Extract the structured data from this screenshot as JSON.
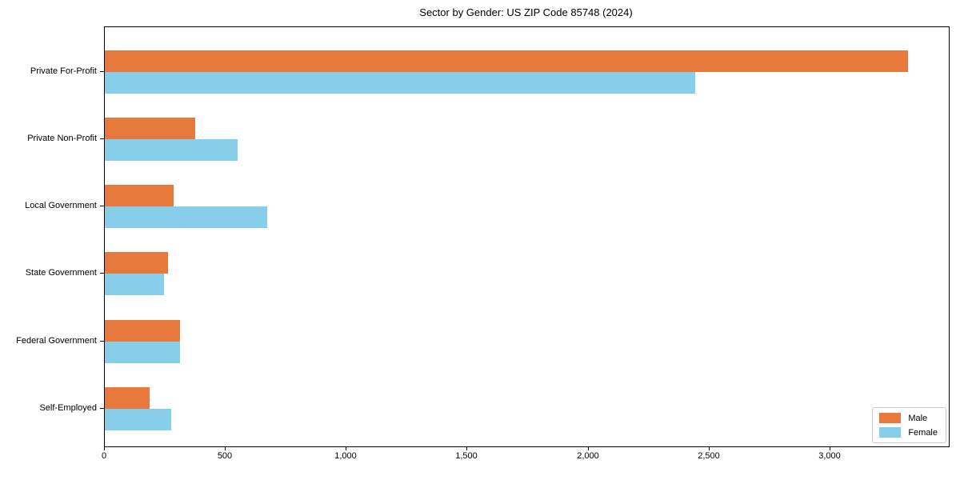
{
  "chart_data": {
    "type": "bar",
    "orientation": "horizontal",
    "title": "Sector by Gender: US ZIP Code 85748 (2024)",
    "categories": [
      "Private For-Profit",
      "Private Non-Profit",
      "Local Government",
      "State Government",
      "Federal Government",
      "Self-Employed"
    ],
    "series": [
      {
        "name": "Male",
        "color": "#e8793d",
        "values": [
          3320,
          375,
          285,
          260,
          310,
          185
        ]
      },
      {
        "name": "Female",
        "color": "#87ceeb",
        "values": [
          2440,
          550,
          670,
          245,
          310,
          275
        ]
      }
    ],
    "xlim": [
      0,
      3490
    ],
    "xticks": [
      0,
      500,
      1000,
      1500,
      2000,
      2500,
      3000
    ],
    "xtick_labels": [
      "0",
      "500",
      "1,000",
      "1,500",
      "2,000",
      "2,500",
      "3,000"
    ],
    "xlabel": "",
    "ylabel": "",
    "grid": false,
    "legend_position": "lower right",
    "background_color": "#ffffff",
    "spine_color": "#000000"
  }
}
